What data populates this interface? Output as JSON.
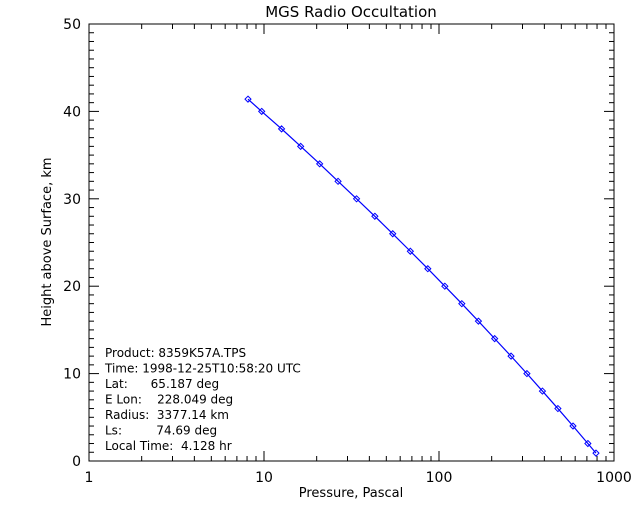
{
  "chart_data": {
    "type": "line",
    "title": "MGS Radio Occultation",
    "xlabel": "Pressure, Pascal",
    "ylabel": "Height above Surface, km",
    "x_scale": "log",
    "xlim": [
      1,
      1000
    ],
    "ylim": [
      0,
      50
    ],
    "x_ticks": [
      "1",
      "10",
      "100",
      "1000"
    ],
    "y_ticks": [
      "0",
      "10",
      "20",
      "30",
      "40",
      "50"
    ],
    "grid": false,
    "series": [
      {
        "color": "#0000ff",
        "marker": "diamond",
        "x": [
          8.1,
          9.7,
          12.6,
          16.2,
          20.8,
          26.5,
          33.8,
          43.0,
          54.4,
          68.6,
          86.3,
          108,
          135,
          168,
          208,
          258,
          318,
          390,
          478,
          583,
          709,
          789
        ],
        "y": [
          41.4,
          40,
          38,
          36,
          34,
          32,
          30,
          28,
          26,
          24,
          22,
          20,
          18,
          16,
          14,
          12,
          10,
          8,
          6,
          4,
          2,
          0.9
        ]
      }
    ],
    "annotations": [
      "Product: 8359K57A.TPS",
      "Time: 1998-12-25T10:58:20 UTC",
      "Lat:      65.187 deg",
      "E Lon:    228.049 deg",
      "Radius:  3377.14 km",
      "Ls:         74.69 deg",
      "Local Time:  4.128 hr"
    ]
  }
}
